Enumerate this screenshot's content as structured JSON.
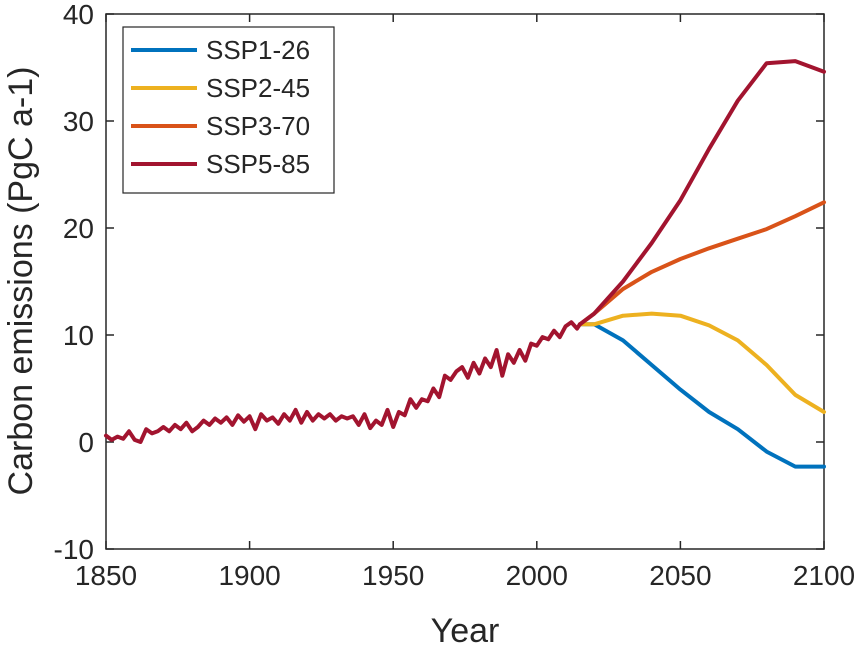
{
  "chart_data": {
    "type": "line",
    "title": "",
    "xlabel": "Year",
    "ylabel": "Carbon emissions (PgC a-1)",
    "xlim": [
      1850,
      2100
    ],
    "ylim": [
      -10,
      40
    ],
    "xticks": [
      1850,
      1900,
      1950,
      2000,
      2050,
      2100
    ],
    "yticks": [
      -10,
      0,
      10,
      20,
      30,
      40
    ],
    "grid": false,
    "legend_position": "top-left",
    "historical": {
      "x": [
        1850,
        1852,
        1854,
        1856,
        1858,
        1860,
        1862,
        1864,
        1866,
        1868,
        1870,
        1872,
        1874,
        1876,
        1878,
        1880,
        1882,
        1884,
        1886,
        1888,
        1890,
        1892,
        1894,
        1896,
        1898,
        1900,
        1902,
        1904,
        1906,
        1908,
        1910,
        1912,
        1914,
        1916,
        1918,
        1920,
        1922,
        1924,
        1926,
        1928,
        1930,
        1932,
        1934,
        1936,
        1938,
        1940,
        1942,
        1944,
        1946,
        1948,
        1950,
        1952,
        1954,
        1956,
        1958,
        1960,
        1962,
        1964,
        1966,
        1968,
        1970,
        1972,
        1974,
        1976,
        1978,
        1980,
        1982,
        1984,
        1986,
        1988,
        1990,
        1992,
        1994,
        1996,
        1998,
        2000,
        2002,
        2004,
        2006,
        2008,
        2010,
        2012,
        2014,
        2015
      ],
      "y": [
        0.6,
        0.2,
        0.5,
        0.3,
        1.0,
        0.2,
        0.0,
        1.2,
        0.8,
        1.0,
        1.4,
        1.0,
        1.6,
        1.2,
        1.8,
        1.0,
        1.4,
        2.0,
        1.6,
        2.2,
        1.8,
        2.3,
        1.6,
        2.5,
        1.9,
        2.4,
        1.2,
        2.6,
        2.0,
        2.3,
        1.7,
        2.6,
        2.0,
        3.0,
        1.8,
        2.8,
        2.0,
        2.6,
        2.2,
        2.6,
        2.0,
        2.4,
        2.2,
        2.4,
        1.6,
        2.6,
        1.3,
        2.0,
        1.6,
        3.0,
        1.4,
        2.8,
        2.5,
        4.0,
        3.2,
        4.0,
        3.8,
        5.0,
        4.2,
        6.2,
        5.8,
        6.6,
        7.0,
        6.0,
        7.4,
        6.4,
        7.8,
        7.0,
        8.6,
        6.2,
        8.2,
        7.4,
        8.6,
        7.6,
        9.2,
        9.0,
        9.8,
        9.6,
        10.4,
        9.8,
        10.8,
        11.2,
        10.6,
        11.0
      ]
    },
    "series": [
      {
        "name": "SSP1-26",
        "color": "#0072BD",
        "x": [
          2015,
          2020,
          2030,
          2040,
          2050,
          2060,
          2070,
          2080,
          2090,
          2100
        ],
        "y": [
          11.0,
          11.0,
          9.5,
          7.2,
          4.9,
          2.8,
          1.2,
          -0.9,
          -2.3,
          -2.3
        ]
      },
      {
        "name": "SSP2-45",
        "color": "#EDB120",
        "x": [
          2015,
          2020,
          2030,
          2040,
          2050,
          2060,
          2070,
          2080,
          2090,
          2100
        ],
        "y": [
          11.0,
          11.0,
          11.8,
          12.0,
          11.8,
          10.9,
          9.5,
          7.2,
          4.4,
          2.8
        ]
      },
      {
        "name": "SSP3-70",
        "color": "#D95319",
        "x": [
          2015,
          2020,
          2030,
          2040,
          2050,
          2060,
          2070,
          2080,
          2090,
          2100
        ],
        "y": [
          11.0,
          12.0,
          14.3,
          15.9,
          17.1,
          18.1,
          19.0,
          19.9,
          21.1,
          22.4
        ]
      },
      {
        "name": "SSP5-85",
        "color": "#A2142F",
        "x": [
          2015,
          2020,
          2030,
          2040,
          2050,
          2060,
          2070,
          2080,
          2090,
          2100
        ],
        "y": [
          11.0,
          12.0,
          15.0,
          18.6,
          22.6,
          27.4,
          31.9,
          35.4,
          35.6,
          34.6
        ]
      }
    ]
  }
}
